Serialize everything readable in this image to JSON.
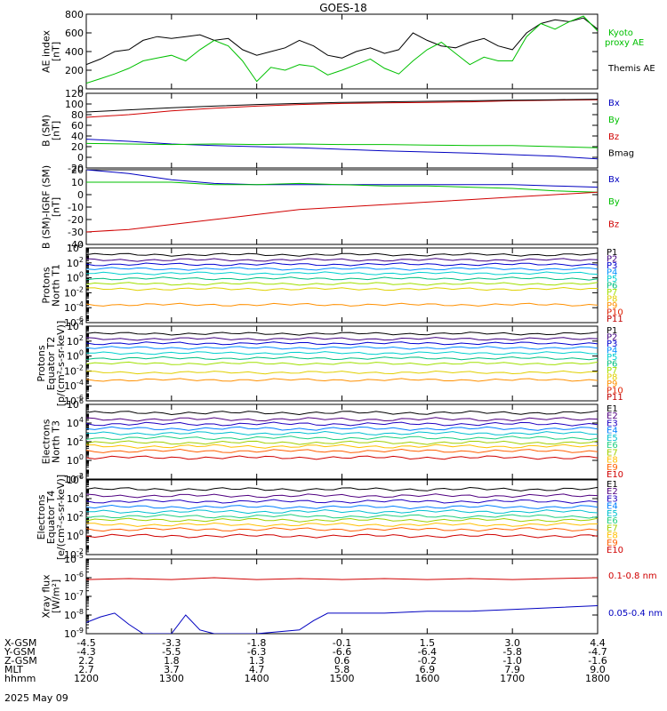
{
  "title": "GOES-18",
  "date": "2025 May 09",
  "panels": [
    {
      "id": "ae",
      "ylabel": [
        "AE index",
        "[nT]"
      ],
      "ymin": 0,
      "ymax": 800,
      "log": false,
      "ticks": [
        "0",
        "200",
        "400",
        "600",
        "800"
      ],
      "tickvals": [
        0,
        200,
        400,
        600,
        800
      ],
      "legend": [
        {
          "text": "Kyoto",
          "color": "#00c000"
        },
        {
          "text": "proxy AE",
          "color": "#00c000"
        },
        {
          "text": "Themis AE",
          "color": "#000000"
        }
      ],
      "series": [
        {
          "name": "Themis AE",
          "color": "#000000",
          "x": [
            1200,
            1210,
            1220,
            1230,
            1240,
            1250,
            1300,
            1310,
            1320,
            1330,
            1340,
            1350,
            1400,
            1410,
            1420,
            1430,
            1440,
            1450,
            1500,
            1510,
            1520,
            1530,
            1540,
            1550,
            1600,
            1610,
            1620,
            1630,
            1640,
            1650,
            1700,
            1710,
            1720,
            1730,
            1740,
            1750,
            1800
          ],
          "y": [
            260,
            320,
            400,
            420,
            520,
            560,
            540,
            560,
            580,
            520,
            540,
            420,
            360,
            400,
            440,
            520,
            460,
            360,
            330,
            400,
            440,
            380,
            420,
            600,
            520,
            460,
            440,
            500,
            540,
            460,
            420,
            600,
            700,
            740,
            720,
            760,
            640
          ]
        },
        {
          "name": "Kyoto proxy AE",
          "color": "#00c000",
          "x": [
            1200,
            1210,
            1220,
            1230,
            1240,
            1250,
            1300,
            1310,
            1320,
            1330,
            1340,
            1350,
            1400,
            1410,
            1420,
            1430,
            1440,
            1450,
            1500,
            1510,
            1520,
            1530,
            1540,
            1550,
            1600,
            1610,
            1620,
            1630,
            1640,
            1650,
            1700,
            1710,
            1720,
            1730,
            1740,
            1750,
            1800
          ],
          "y": [
            60,
            110,
            160,
            220,
            300,
            330,
            360,
            300,
            420,
            520,
            460,
            300,
            80,
            230,
            200,
            260,
            240,
            150,
            200,
            260,
            320,
            220,
            160,
            300,
            420,
            500,
            380,
            260,
            340,
            300,
            300,
            560,
            700,
            640,
            720,
            780,
            620
          ]
        }
      ]
    },
    {
      "id": "bsm",
      "ylabel": [
        "B (SM)",
        "[nT]"
      ],
      "ymin": -20,
      "ymax": 120,
      "log": false,
      "ticks": [
        "-20",
        "0",
        "20",
        "40",
        "60",
        "80",
        "100",
        "120"
      ],
      "tickvals": [
        -20,
        0,
        20,
        40,
        60,
        80,
        100,
        120
      ],
      "legend": [
        {
          "text": "Bx",
          "color": "#0000c0"
        },
        {
          "text": "By",
          "color": "#00c000"
        },
        {
          "text": "Bz",
          "color": "#d00000"
        },
        {
          "text": "Bmag",
          "color": "#000000"
        }
      ],
      "series": [
        {
          "name": "Bx",
          "color": "#0000c0",
          "x": [
            1200,
            1230,
            1300,
            1330,
            1400,
            1430,
            1500,
            1530,
            1600,
            1630,
            1700,
            1730,
            1800
          ],
          "y": [
            34,
            30,
            25,
            22,
            20,
            18,
            15,
            12,
            10,
            8,
            5,
            2,
            -3
          ]
        },
        {
          "name": "By",
          "color": "#00c000",
          "x": [
            1200,
            1230,
            1300,
            1330,
            1400,
            1430,
            1500,
            1530,
            1600,
            1630,
            1700,
            1730,
            1800
          ],
          "y": [
            26,
            25,
            24,
            25,
            24,
            25,
            24,
            24,
            23,
            22,
            22,
            20,
            18
          ]
        },
        {
          "name": "Bz",
          "color": "#d00000",
          "x": [
            1200,
            1230,
            1300,
            1330,
            1400,
            1430,
            1500,
            1530,
            1600,
            1630,
            1700,
            1730,
            1800
          ],
          "y": [
            75,
            80,
            87,
            92,
            96,
            99,
            101,
            102,
            103,
            104,
            106,
            107,
            108
          ]
        },
        {
          "name": "Bmag",
          "color": "#000000",
          "x": [
            1200,
            1230,
            1300,
            1330,
            1400,
            1430,
            1500,
            1530,
            1600,
            1630,
            1700,
            1730,
            1800
          ],
          "y": [
            85,
            89,
            93,
            96,
            99,
            101,
            103,
            104,
            105,
            106,
            107,
            108,
            109
          ]
        }
      ]
    },
    {
      "id": "digrf",
      "ylabel": [
        "B (SM)-IGRF (SM)",
        "[nT]"
      ],
      "ymin": -40,
      "ymax": 20,
      "log": false,
      "ticks": [
        "-40",
        "-30",
        "-20",
        "-10",
        "0",
        "10",
        "20"
      ],
      "tickvals": [
        -40,
        -30,
        -20,
        -10,
        0,
        10,
        20
      ],
      "legend": [
        {
          "text": "Bx",
          "color": "#0000c0"
        },
        {
          "text": "By",
          "color": "#00c000"
        },
        {
          "text": "Bz",
          "color": "#d00000"
        }
      ],
      "series": [
        {
          "name": "Bx",
          "color": "#0000c0",
          "x": [
            1200,
            1230,
            1300,
            1330,
            1400,
            1430,
            1500,
            1530,
            1600,
            1630,
            1700,
            1730,
            1800
          ],
          "y": [
            20,
            17,
            12,
            9,
            8,
            8,
            8,
            8,
            8,
            8,
            8,
            7,
            6
          ]
        },
        {
          "name": "By",
          "color": "#00c000",
          "x": [
            1200,
            1230,
            1300,
            1330,
            1400,
            1430,
            1500,
            1530,
            1600,
            1630,
            1700,
            1730,
            1800
          ],
          "y": [
            10,
            10,
            10,
            8,
            8,
            9,
            8,
            7,
            7,
            6,
            5,
            3,
            2
          ]
        },
        {
          "name": "Bz",
          "color": "#d00000",
          "x": [
            1200,
            1230,
            1300,
            1330,
            1400,
            1430,
            1500,
            1530,
            1600,
            1630,
            1700,
            1730,
            1800
          ],
          "y": [
            -30,
            -28,
            -24,
            -20,
            -16,
            -12,
            -10,
            -8,
            -6,
            -4,
            -2,
            0,
            2
          ]
        }
      ]
    },
    {
      "id": "pn",
      "ylabel": [
        "Protons",
        "North T1"
      ],
      "ymin": -6,
      "ymax": 4,
      "log": true,
      "ticks": [
        "10^-6",
        "10^-4",
        "10^-2",
        "10^0",
        "10^2",
        "10^4"
      ],
      "tickvals": [
        -6,
        -4,
        -2,
        0,
        2,
        4
      ],
      "legend": [
        {
          "text": "P1",
          "color": "#000000"
        },
        {
          "text": "P2",
          "color": "#400080"
        },
        {
          "text": "P3",
          "color": "#0000d0"
        },
        {
          "text": "P4",
          "color": "#0090ff"
        },
        {
          "text": "P5",
          "color": "#00d0d0"
        },
        {
          "text": "P6",
          "color": "#00c080"
        },
        {
          "text": "P7",
          "color": "#a0e000"
        },
        {
          "text": "P8",
          "color": "#e0d000"
        },
        {
          "text": "P9",
          "color": "#ff9000"
        },
        {
          "text": "P10",
          "color": "#e02000"
        },
        {
          "text": "P11",
          "color": "#c00000"
        }
      ],
      "levels": [
        3.1,
        2.4,
        1.8,
        1.2,
        0.6,
        -0.1,
        -0.8,
        -1.5,
        -3.6
      ]
    },
    {
      "id": "pe",
      "ylabel": [
        "Protons",
        "Equator T2",
        "[p/(cm²-s-sr-keV)]"
      ],
      "ymin": -6,
      "ymax": 4,
      "log": true,
      "ticks": [
        "10^-6",
        "10^-4",
        "10^-2",
        "10^0",
        "10^2",
        "10^4"
      ],
      "tickvals": [
        -6,
        -4,
        -2,
        0,
        2,
        4
      ],
      "legend": [
        {
          "text": "P1",
          "color": "#000000"
        },
        {
          "text": "P2",
          "color": "#400080"
        },
        {
          "text": "P3",
          "color": "#0000d0"
        },
        {
          "text": "P4",
          "color": "#0090ff"
        },
        {
          "text": "P5",
          "color": "#00d0d0"
        },
        {
          "text": "P6",
          "color": "#00c080"
        },
        {
          "text": "P7",
          "color": "#a0e000"
        },
        {
          "text": "P8",
          "color": "#e0d000"
        },
        {
          "text": "P9",
          "color": "#ff9000"
        },
        {
          "text": "P10",
          "color": "#e02000"
        },
        {
          "text": "P11",
          "color": "#c00000"
        }
      ],
      "levels": [
        3.0,
        2.3,
        1.7,
        1.1,
        0.4,
        -0.3,
        -1.0,
        -2.2,
        -3.2
      ]
    },
    {
      "id": "en",
      "ylabel": [
        "Electrons",
        "North T3"
      ],
      "ymin": -2,
      "ymax": 6,
      "log": true,
      "ticks": [
        "10^-2",
        "10^0",
        "10^2",
        "10^4",
        "10^6"
      ],
      "tickvals": [
        -2,
        0,
        2,
        4,
        6
      ],
      "legend": [
        {
          "text": "E1",
          "color": "#000000"
        },
        {
          "text": "E2",
          "color": "#500080"
        },
        {
          "text": "E3",
          "color": "#2000c0"
        },
        {
          "text": "E4",
          "color": "#0080ff"
        },
        {
          "text": "E5",
          "color": "#00c0d0"
        },
        {
          "text": "E6",
          "color": "#20d080"
        },
        {
          "text": "E7",
          "color": "#a0d000"
        },
        {
          "text": "E8",
          "color": "#ffc000"
        },
        {
          "text": "E9",
          "color": "#ff6000"
        },
        {
          "text": "E10",
          "color": "#d00000"
        }
      ],
      "levels": [
        5.1,
        4.4,
        3.9,
        3.4,
        2.9,
        2.4,
        1.9,
        1.5,
        1.0,
        0.3
      ]
    },
    {
      "id": "ee",
      "ylabel": [
        "Electrons",
        "Equator T4",
        "[e/(cm²-s-sr-keV)]"
      ],
      "ymin": -2,
      "ymax": 6,
      "log": true,
      "ticks": [
        "10^-2",
        "10^0",
        "10^2",
        "10^4",
        "10^6"
      ],
      "tickvals": [
        -2,
        0,
        2,
        4,
        6
      ],
      "legend": [
        {
          "text": "E1",
          "color": "#000000"
        },
        {
          "text": "E2",
          "color": "#500080"
        },
        {
          "text": "E3",
          "color": "#2000c0"
        },
        {
          "text": "E4",
          "color": "#0080ff"
        },
        {
          "text": "E5",
          "color": "#00c0d0"
        },
        {
          "text": "E6",
          "color": "#20d080"
        },
        {
          "text": "E7",
          "color": "#a0d000"
        },
        {
          "text": "E8",
          "color": "#ffc000"
        },
        {
          "text": "E9",
          "color": "#ff6000"
        },
        {
          "text": "E10",
          "color": "#d00000"
        }
      ],
      "levels": [
        5.0,
        4.3,
        3.7,
        3.1,
        2.6,
        2.1,
        1.7,
        1.2,
        0.7,
        0.0
      ]
    },
    {
      "id": "xray",
      "ylabel": [
        "Xray flux",
        "[W/m²]"
      ],
      "ymin": -9,
      "ymax": -5,
      "log": true,
      "ticks": [
        "10^-9",
        "10^-8",
        "10^-7",
        "10^-6",
        "10^-5"
      ],
      "tickvals": [
        -9,
        -8,
        -7,
        -6,
        -5
      ],
      "legend": [
        {
          "text": "0.1-0.8 nm",
          "color": "#d00000"
        },
        {
          "text": "0.05-0.4 nm",
          "color": "#0000c0"
        }
      ],
      "series": [
        {
          "name": "0.1-0.8 nm",
          "color": "#d00000",
          "x": [
            1200,
            1230,
            1300,
            1330,
            1400,
            1430,
            1500,
            1530,
            1600,
            1630,
            1700,
            1730,
            1800
          ],
          "y": [
            -6.1,
            -6.05,
            -6.1,
            -6.0,
            -6.1,
            -6.05,
            -6.1,
            -6.05,
            -6.1,
            -6.05,
            -6.1,
            -6.05,
            -6.0
          ]
        },
        {
          "name": "0.05-0.4 nm",
          "color": "#0000c0",
          "x": [
            1200,
            1210,
            1220,
            1230,
            1240,
            1250,
            1300,
            1310,
            1320,
            1330,
            1400,
            1430,
            1440,
            1450,
            1500,
            1530,
            1600,
            1630,
            1700,
            1730,
            1800
          ],
          "y": [
            -8.4,
            -8.1,
            -7.9,
            -8.5,
            -9.0,
            -9.0,
            -9.0,
            -8.0,
            -8.8,
            -9.0,
            -9.0,
            -8.8,
            -8.3,
            -7.9,
            -7.9,
            -7.9,
            -7.8,
            -7.8,
            -7.7,
            -7.6,
            -7.5
          ]
        }
      ]
    }
  ],
  "ephemeris": {
    "labels": [
      "X-GSM",
      "Y-GSM",
      "Z-GSM",
      "MLT",
      "hhmm"
    ],
    "columns": [
      [
        "-4.5",
        "-4.3",
        "2.2",
        "2.7",
        "1200"
      ],
      [
        "-3.3",
        "-5.5",
        "1.8",
        "3.7",
        "1300"
      ],
      [
        "-1.8",
        "-6.3",
        "1.3",
        "4.7",
        "1400"
      ],
      [
        "-0.1",
        "-6.6",
        "0.6",
        "5.8",
        "1500"
      ],
      [
        "1.5",
        "-6.4",
        "-0.2",
        "6.9",
        "1600"
      ],
      [
        "3.0",
        "-5.8",
        "-1.0",
        "7.9",
        "1700"
      ],
      [
        "4.4",
        "-4.7",
        "-1.6",
        "9.0",
        "1800"
      ]
    ]
  }
}
